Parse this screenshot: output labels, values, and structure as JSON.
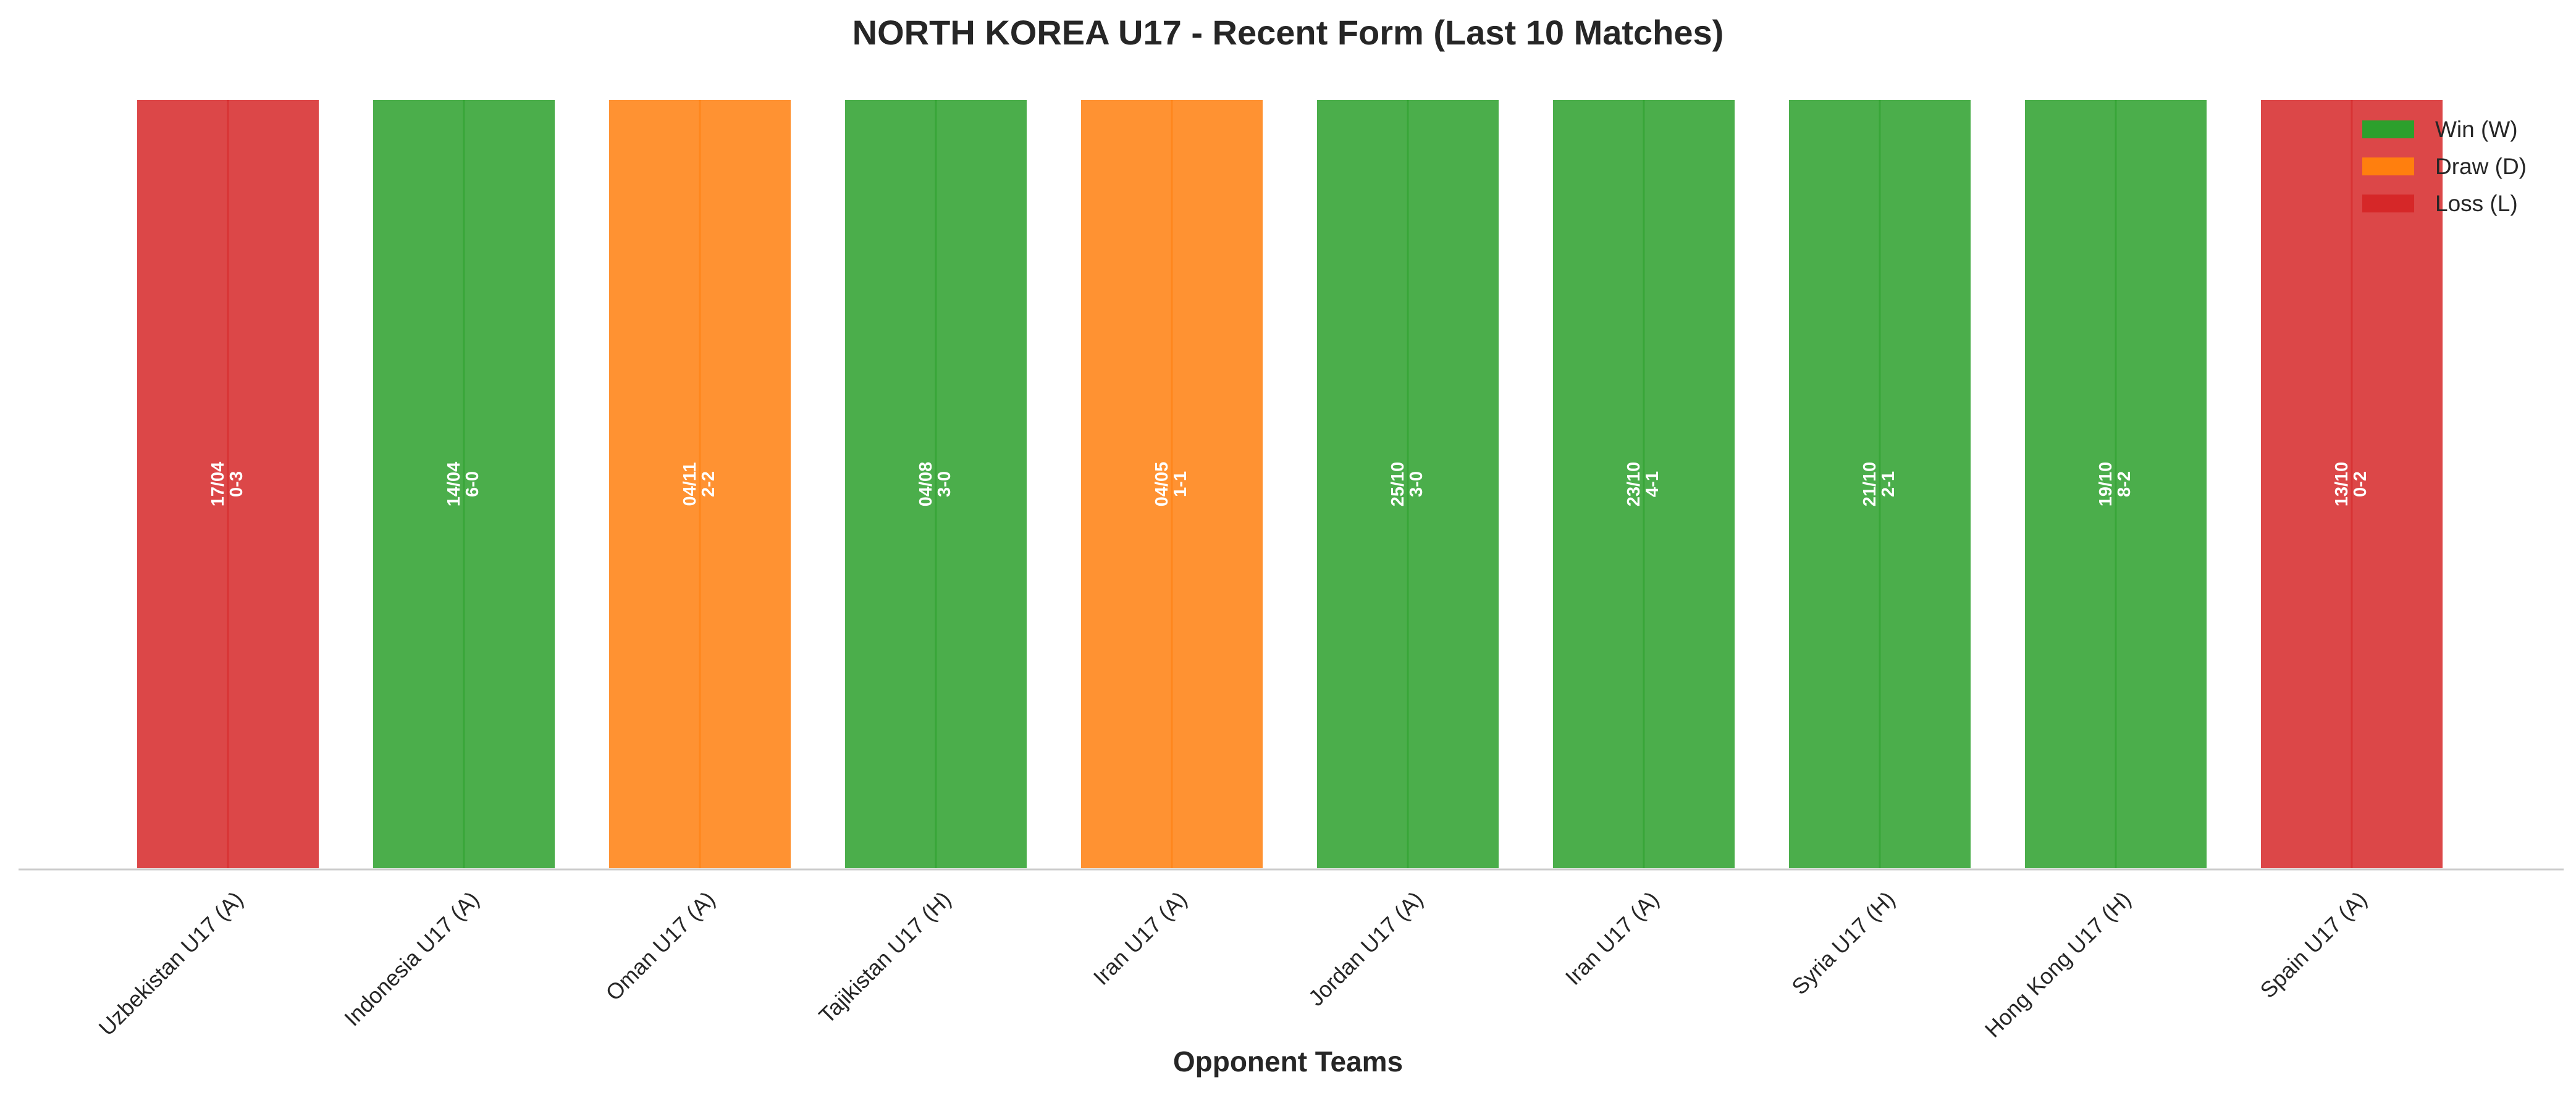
{
  "chart_data": {
    "type": "bar",
    "title": "NORTH KOREA U17 - Recent Form (Last 10 Matches)",
    "xlabel": "Opponent Teams",
    "ylabel": "",
    "grid": false,
    "legend_placement": "top-right",
    "categories": [
      "Uzbekistan U17 (A)",
      "Indonesia U17 (A)",
      "Oman U17 (A)",
      "Tajikistan U17 (H)",
      "Iran U17 (A)",
      "Jordan U17 (A)",
      "Iran U17 (A)",
      "Syria U17 (H)",
      "Hong Kong U17 (H)",
      "Spain U17 (A)"
    ],
    "values": [
      1,
      1,
      1,
      1,
      1,
      1,
      1,
      1,
      1,
      1
    ],
    "results": [
      "L",
      "W",
      "D",
      "W",
      "D",
      "W",
      "W",
      "W",
      "W",
      "L"
    ],
    "dates": [
      "17/04",
      "14/04",
      "04/11",
      "04/08",
      "04/05",
      "25/10",
      "23/10",
      "21/10",
      "19/10",
      "13/10"
    ],
    "scores": [
      "0-3",
      "6-0",
      "2-2",
      "3-0",
      "1-1",
      "3-0",
      "4-1",
      "2-1",
      "8-2",
      "0-2"
    ],
    "ylim": [
      0,
      1
    ],
    "legend": [
      {
        "key": "W",
        "label": "Win (W)",
        "color": "#2ca02c"
      },
      {
        "key": "D",
        "label": "Draw (D)",
        "color": "#ff7f0e"
      },
      {
        "key": "L",
        "label": "Loss (L)",
        "color": "#d62728"
      }
    ],
    "colors": {
      "W": "#2ca02c",
      "D": "#ff7f0e",
      "L": "#d62728"
    }
  }
}
